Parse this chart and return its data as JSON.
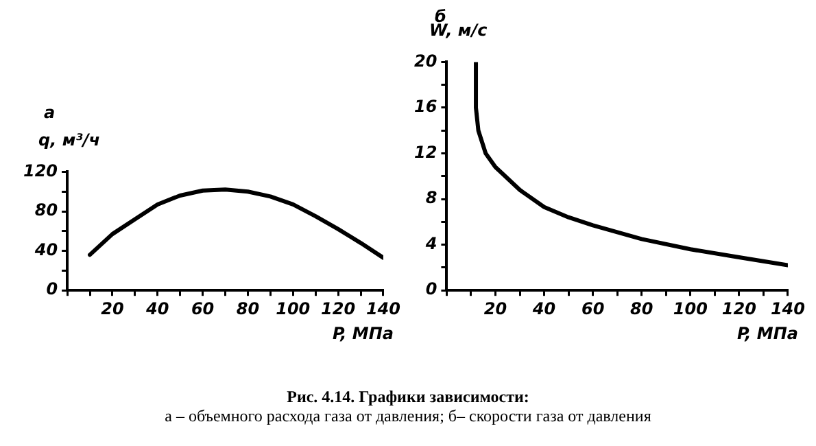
{
  "chart_data": [
    {
      "type": "line",
      "title": "а",
      "ylabel": "q, м³/ч",
      "xlabel": "P, МПа",
      "color": "#000000",
      "x": [
        10,
        20,
        30,
        40,
        50,
        60,
        70,
        80,
        90,
        100,
        110,
        120,
        130,
        140
      ],
      "values": [
        36,
        57,
        72,
        87,
        96,
        101,
        102,
        100,
        95,
        87,
        75,
        62,
        48,
        33
      ],
      "xlim": [
        0,
        140
      ],
      "ylim": [
        0,
        120
      ],
      "xticks": [
        {
          "value": 0,
          "label": null
        },
        {
          "value": 10,
          "label": null
        },
        20,
        {
          "value": 30,
          "label": null
        },
        40,
        {
          "value": 50,
          "label": null
        },
        60,
        {
          "value": 70,
          "label": null
        },
        80,
        {
          "value": 90,
          "label": null
        },
        100,
        {
          "value": 110,
          "label": null
        },
        120,
        {
          "value": 130,
          "label": null
        },
        140
      ],
      "yticks": [
        0,
        {
          "value": 20,
          "label": null
        },
        40,
        {
          "value": 60,
          "label": null
        },
        80,
        {
          "value": 100,
          "label": null
        },
        120
      ],
      "grid": false,
      "marker": "none",
      "line_style": "solid",
      "annotations": [
        "Рис. 4.14. Графики зависимости:",
        "а – объемного расхода газа от давления; б– скорости газа от давления"
      ]
    },
    {
      "type": "line",
      "title": "б",
      "ylabel": "W, м/с",
      "xlabel": "P, МПа",
      "color": "#000000",
      "x": [
        12,
        12,
        13,
        16,
        20,
        24,
        30,
        40,
        50,
        60,
        80,
        100,
        120,
        140
      ],
      "values": [
        20,
        16,
        14,
        12,
        10.8,
        10,
        8.8,
        7.3,
        6.4,
        5.7,
        4.5,
        3.6,
        2.9,
        2.2
      ],
      "xlim": [
        0,
        140
      ],
      "ylim": [
        0,
        20
      ],
      "xticks": [
        {
          "value": 0,
          "label": null
        },
        {
          "value": 10,
          "label": null
        },
        20,
        {
          "value": 30,
          "label": null
        },
        40,
        {
          "value": 50,
          "label": null
        },
        60,
        {
          "value": 70,
          "label": null
        },
        80,
        {
          "value": 90,
          "label": null
        },
        100,
        {
          "value": 110,
          "label": null
        },
        120,
        {
          "value": 130,
          "label": null
        },
        140
      ],
      "yticks": [
        0,
        {
          "value": 2,
          "label": null
        },
        4,
        {
          "value": 6,
          "label": null
        },
        8,
        {
          "value": 10,
          "label": null
        },
        12,
        {
          "value": 14,
          "label": null
        },
        16,
        {
          "value": 18,
          "label": null
        },
        20
      ],
      "grid": false,
      "marker": "none",
      "line_style": "solid"
    }
  ]
}
